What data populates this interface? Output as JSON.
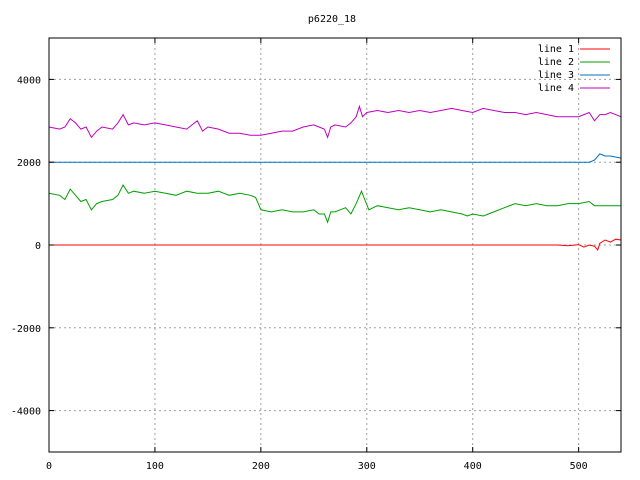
{
  "chart_data": {
    "type": "line",
    "title": "p6220_18",
    "xlabel": "",
    "ylabel": "",
    "xlim": [
      0,
      540
    ],
    "ylim": [
      -5000,
      5000
    ],
    "xticks": [
      0,
      100,
      200,
      300,
      400,
      500
    ],
    "yticks": [
      -4000,
      -2000,
      0,
      2000,
      4000
    ],
    "grid": true,
    "legend_position": "top-right",
    "series": [
      {
        "name": "line 1",
        "color": "#ff0000",
        "x": [
          0,
          100,
          200,
          300,
          400,
          470,
          480,
          490,
          500,
          505,
          510,
          515,
          518,
          520,
          525,
          530,
          535,
          540
        ],
        "y": [
          0,
          0,
          0,
          0,
          0,
          0,
          0,
          -20,
          10,
          -50,
          0,
          -30,
          -120,
          40,
          120,
          70,
          140,
          120
        ]
      },
      {
        "name": "line 2",
        "color": "#00a000",
        "x": [
          0,
          10,
          15,
          20,
          25,
          30,
          35,
          40,
          45,
          50,
          60,
          65,
          70,
          75,
          80,
          90,
          100,
          110,
          120,
          130,
          140,
          150,
          160,
          170,
          180,
          190,
          195,
          200,
          210,
          220,
          230,
          240,
          250,
          255,
          260,
          263,
          266,
          270,
          280,
          285,
          290,
          295,
          298,
          302,
          310,
          320,
          330,
          340,
          350,
          360,
          370,
          380,
          390,
          395,
          400,
          410,
          420,
          430,
          440,
          450,
          460,
          470,
          480,
          490,
          500,
          510,
          515,
          520,
          530,
          540
        ],
        "y": [
          1250,
          1200,
          1100,
          1350,
          1200,
          1050,
          1100,
          850,
          1000,
          1050,
          1100,
          1200,
          1450,
          1250,
          1300,
          1250,
          1300,
          1250,
          1200,
          1300,
          1250,
          1250,
          1300,
          1200,
          1250,
          1200,
          1150,
          850,
          800,
          850,
          800,
          800,
          850,
          750,
          750,
          550,
          800,
          800,
          900,
          750,
          1000,
          1300,
          1100,
          850,
          950,
          900,
          850,
          900,
          850,
          800,
          850,
          800,
          750,
          700,
          750,
          700,
          800,
          900,
          1000,
          950,
          1000,
          950,
          950,
          1000,
          1000,
          1050,
          950,
          950,
          950,
          950
        ]
      },
      {
        "name": "line 3",
        "color": "#0070c0",
        "x": [
          0,
          100,
          200,
          300,
          400,
          500,
          510,
          515,
          520,
          525,
          530,
          540
        ],
        "y": [
          2000,
          2000,
          2000,
          2000,
          2000,
          2000,
          2000,
          2050,
          2200,
          2150,
          2150,
          2100
        ]
      },
      {
        "name": "line 4",
        "color": "#c000c0",
        "x": [
          0,
          10,
          15,
          20,
          25,
          30,
          35,
          40,
          45,
          50,
          60,
          65,
          70,
          75,
          80,
          90,
          100,
          110,
          120,
          130,
          135,
          140,
          145,
          150,
          160,
          170,
          180,
          190,
          200,
          210,
          220,
          230,
          240,
          250,
          255,
          260,
          263,
          266,
          270,
          280,
          285,
          290,
          293,
          296,
          300,
          310,
          320,
          330,
          340,
          350,
          360,
          370,
          380,
          390,
          400,
          410,
          420,
          430,
          440,
          450,
          460,
          470,
          480,
          490,
          500,
          505,
          510,
          515,
          520,
          525,
          530,
          540
        ],
        "y": [
          2850,
          2800,
          2850,
          3050,
          2950,
          2800,
          2850,
          2600,
          2750,
          2850,
          2800,
          2950,
          3150,
          2900,
          2950,
          2900,
          2950,
          2900,
          2850,
          2800,
          2900,
          3000,
          2750,
          2850,
          2800,
          2700,
          2700,
          2650,
          2650,
          2700,
          2750,
          2750,
          2850,
          2900,
          2850,
          2800,
          2600,
          2850,
          2900,
          2850,
          2950,
          3100,
          3350,
          3100,
          3200,
          3250,
          3200,
          3250,
          3200,
          3250,
          3200,
          3250,
          3300,
          3250,
          3200,
          3300,
          3250,
          3200,
          3200,
          3150,
          3200,
          3150,
          3100,
          3100,
          3100,
          3150,
          3200,
          3000,
          3150,
          3150,
          3200,
          3100
        ]
      }
    ]
  }
}
